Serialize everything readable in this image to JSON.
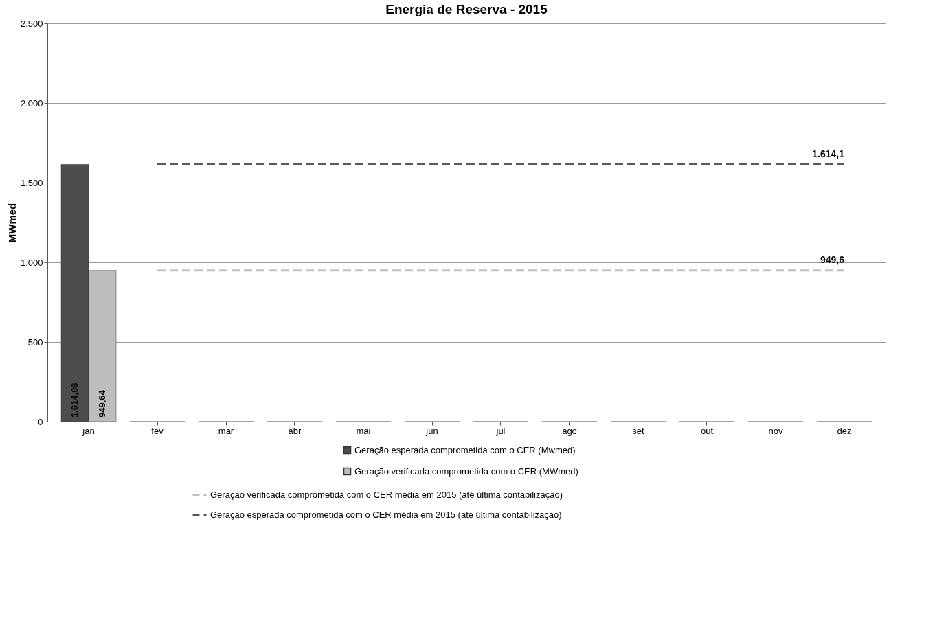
{
  "chart_data": {
    "type": "bar",
    "title": "Energia de Reserva - 2015",
    "ylabel": "MWmed",
    "categories": [
      "jan",
      "fev",
      "mar",
      "abr",
      "mai",
      "jun",
      "jul",
      "ago",
      "set",
      "out",
      "nov",
      "dez"
    ],
    "series": [
      {
        "name": "Geração esperada comprometida com o CER (Mwmed)",
        "color": "#4d4d4d",
        "values": [
          1614.06,
          0,
          0,
          0,
          0,
          0,
          0,
          0,
          0,
          0,
          0,
          0
        ],
        "value_labels": [
          "1.614,06",
          null,
          null,
          null,
          null,
          null,
          null,
          null,
          null,
          null,
          null,
          null
        ]
      },
      {
        "name": "Geração verificada comprometida com o CER (MWmed)",
        "color": "#bdbdbd",
        "values": [
          949.64,
          0,
          0,
          0,
          0,
          0,
          0,
          0,
          0,
          0,
          0,
          0
        ],
        "value_labels": [
          "949,64",
          null,
          null,
          null,
          null,
          null,
          null,
          null,
          null,
          null,
          null,
          null
        ]
      },
      {
        "name": "Geração verificada comprometida com o CER média em 2015 (até última contabilização)",
        "type": "line",
        "line_style": "dashed",
        "color": "#c0c0c0",
        "values": [
          null,
          949.6,
          949.6,
          949.6,
          949.6,
          949.6,
          949.6,
          949.6,
          949.6,
          949.6,
          949.6,
          949.6
        ],
        "value_labels": [
          null,
          null,
          null,
          null,
          null,
          null,
          null,
          null,
          null,
          null,
          null,
          "949,6"
        ]
      },
      {
        "name": "Geração esperada comprometida com o CER média em 2015 (até última contabilização)",
        "type": "line",
        "line_style": "dashed",
        "color": "#595959",
        "values": [
          null,
          1614.1,
          1614.1,
          1614.1,
          1614.1,
          1614.1,
          1614.1,
          1614.1,
          1614.1,
          1614.1,
          1614.1,
          1614.1
        ],
        "value_labels": [
          null,
          null,
          null,
          null,
          null,
          null,
          null,
          null,
          null,
          null,
          null,
          "1.614,1"
        ]
      }
    ],
    "ylim": [
      0,
      2500
    ],
    "yticks": [
      0,
      500,
      {
        "value": 1000,
        "label": "1.000"
      },
      {
        "value": 1500,
        "label": "1.500"
      },
      {
        "value": 2000,
        "label": "2.000"
      },
      {
        "value": 2500,
        "label": "2.500"
      }
    ],
    "grid": "y",
    "legend": "bottom"
  }
}
